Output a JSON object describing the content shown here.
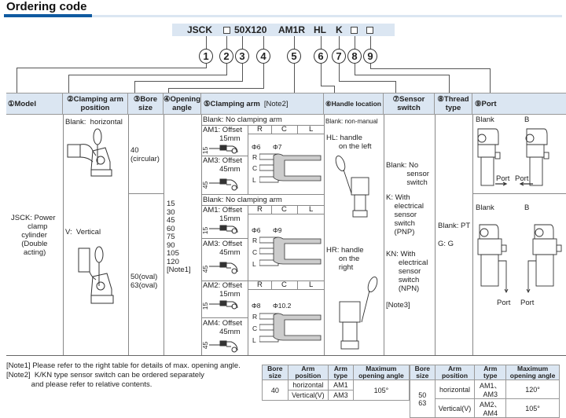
{
  "title": "Ordering code",
  "code": {
    "model": "JSCK",
    "size": "50X120",
    "arm": "AM1R",
    "handle": "HL",
    "sensor": "K"
  },
  "circles": [
    "1",
    "2",
    "3",
    "4",
    "5",
    "6",
    "7",
    "8",
    "9"
  ],
  "headers": {
    "model": "①Model",
    "arm_position": "②Clamping arm position",
    "bore": "③Bore size",
    "angle": "④Opening angle",
    "clamping_arm": "⑤Clamping arm",
    "clamping_arm_note": "[Note2]",
    "handle": "⑥Handle location",
    "sensor": "⑦Sensor switch",
    "thread": "⑧Thread type",
    "port": "⑨Port"
  },
  "model": "JSCK: Power\n        clamp\n     cylinder\n     (Double\n      acting)",
  "arm_position": {
    "horizontal": "Blank:  horizontal",
    "vertical": "V:  Vertical"
  },
  "bore": {
    "small": "40\n(circular)",
    "large": "50(oval)\n63(oval)"
  },
  "angles": "15\n30\n45\n60\n75\n90\n105\n120\n[Note1]",
  "clamping_blocks": [
    {
      "blank": "Blank: No clamping arm",
      "a": "AM1: Offset\n        15mm",
      "a_dim": "15",
      "b": "AM3: Offset\n        45mm",
      "b_dim": "45",
      "phi1": "Φ6",
      "phi2": "Φ7"
    },
    {
      "blank": "Blank: No clamping arm",
      "a": "AM1: Offset\n        15mm",
      "a_dim": "15",
      "b": "AM3: Offset\n        45mm",
      "b_dim": "45",
      "phi1": "Φ6",
      "phi2": "Φ9"
    },
    {
      "blank": "",
      "a": "AM2: Offset\n        15mm",
      "a_dim": "15",
      "b": "AM4: Offset\n        45mm",
      "b_dim": "45",
      "phi1": "Φ8",
      "phi2": "Φ10.2"
    }
  ],
  "rcl": [
    "R",
    "C",
    "L"
  ],
  "handle": {
    "blank": "Blank: non-manual",
    "hl": "HL: handle\n      on the left",
    "hr": "HR: handle\n      on the\n      right"
  },
  "sensor": {
    "blank": "Blank: No\n          sensor\n          switch",
    "k": "K: With\n    electrical\n    sensor\n    switch\n    (PNP)",
    "kn": "KN: With\n      electrical\n      sensor\n      switch\n      (NPN)",
    "note": "[Note3]"
  },
  "thread": {
    "pt": "Blank: PT",
    "g": "G: G"
  },
  "port": {
    "blank": "Blank",
    "b": "B",
    "port": "Port"
  },
  "notes": [
    "[Note1] Please refer to the right table for details of max. opening angle.",
    "[Note2]  K/KN type sensor switch can be ordered separately",
    "            and please refer to relative contents."
  ],
  "angle_table": {
    "headers": [
      "Bore size",
      "Arm position",
      "Arm type",
      "Maximum opening angle"
    ],
    "left": {
      "bore": "40",
      "rows": [
        [
          "horizontal",
          "AM1"
        ],
        [
          "Vertical(V)",
          "AM3"
        ]
      ],
      "angle": "105°"
    },
    "right": {
      "bore": "50\n63",
      "rows": [
        [
          "horizontal",
          "AM1、AM3",
          "120°"
        ],
        [
          "Vertical(V)",
          "AM2、AM4",
          "105°"
        ]
      ]
    }
  },
  "colors": {
    "accent": "#0f5aa0",
    "header_bg": "#dbe6f2"
  }
}
